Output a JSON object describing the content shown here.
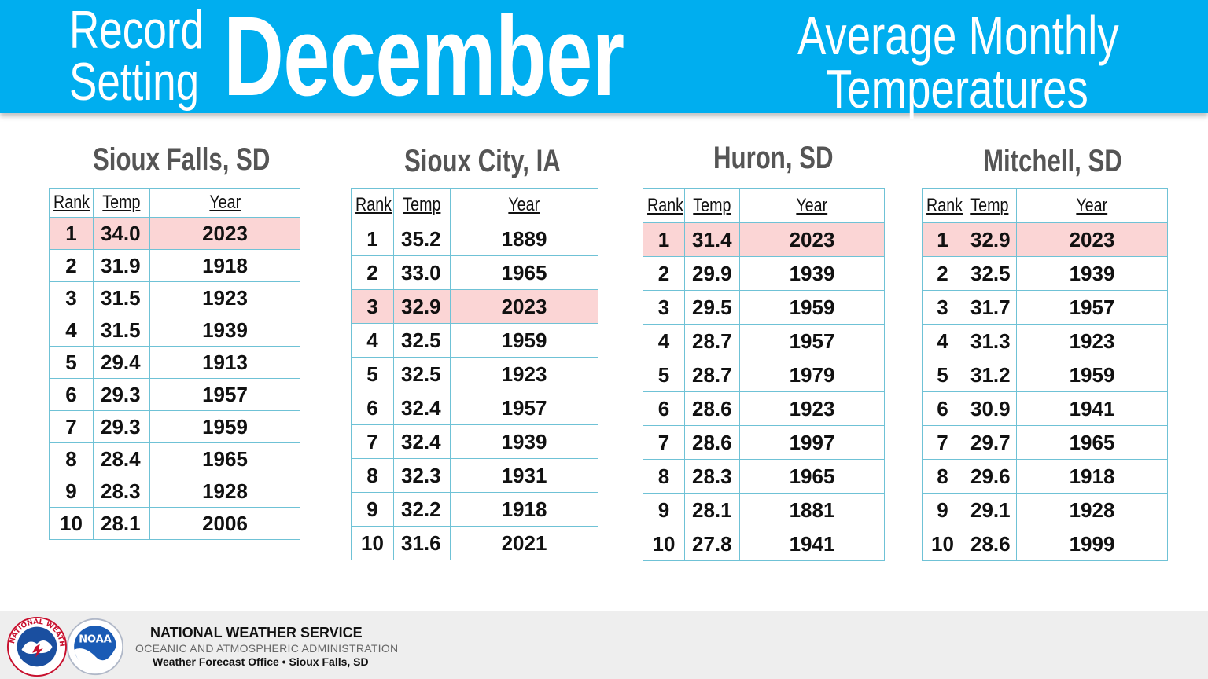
{
  "header": {
    "title_line1": "Record",
    "title_line2": "Setting",
    "title_month": "December",
    "subtitle_line1": "Average Monthly",
    "subtitle_line2": "Temperatures"
  },
  "table_headers": {
    "rank": "Rank",
    "temp": "Temp",
    "year": "Year"
  },
  "cities": [
    {
      "name": "Sioux Falls, SD",
      "highlight_rank": 1,
      "rows": [
        {
          "rank": "1",
          "temp": "34.0",
          "year": "2023"
        },
        {
          "rank": "2",
          "temp": "31.9",
          "year": "1918"
        },
        {
          "rank": "3",
          "temp": "31.5",
          "year": "1923"
        },
        {
          "rank": "4",
          "temp": "31.5",
          "year": "1939"
        },
        {
          "rank": "5",
          "temp": "29.4",
          "year": "1913"
        },
        {
          "rank": "6",
          "temp": "29.3",
          "year": "1957"
        },
        {
          "rank": "7",
          "temp": "29.3",
          "year": "1959"
        },
        {
          "rank": "8",
          "temp": "28.4",
          "year": "1965"
        },
        {
          "rank": "9",
          "temp": "28.3",
          "year": "1928"
        },
        {
          "rank": "10",
          "temp": "28.1",
          "year": "2006"
        }
      ]
    },
    {
      "name": "Sioux City, IA",
      "highlight_rank": 3,
      "rows": [
        {
          "rank": "1",
          "temp": "35.2",
          "year": "1889"
        },
        {
          "rank": "2",
          "temp": "33.0",
          "year": "1965"
        },
        {
          "rank": "3",
          "temp": "32.9",
          "year": "2023"
        },
        {
          "rank": "4",
          "temp": "32.5",
          "year": "1959"
        },
        {
          "rank": "5",
          "temp": "32.5",
          "year": "1923"
        },
        {
          "rank": "6",
          "temp": "32.4",
          "year": "1957"
        },
        {
          "rank": "7",
          "temp": "32.4",
          "year": "1939"
        },
        {
          "rank": "8",
          "temp": "32.3",
          "year": "1931"
        },
        {
          "rank": "9",
          "temp": "32.2",
          "year": "1918"
        },
        {
          "rank": "10",
          "temp": "31.6",
          "year": "2021"
        }
      ]
    },
    {
      "name": "Huron, SD",
      "highlight_rank": 1,
      "rows": [
        {
          "rank": "1",
          "temp": "31.4",
          "year": "2023"
        },
        {
          "rank": "2",
          "temp": "29.9",
          "year": "1939"
        },
        {
          "rank": "3",
          "temp": "29.5",
          "year": "1959"
        },
        {
          "rank": "4",
          "temp": "28.7",
          "year": "1957"
        },
        {
          "rank": "5",
          "temp": "28.7",
          "year": "1979"
        },
        {
          "rank": "6",
          "temp": "28.6",
          "year": "1923"
        },
        {
          "rank": "7",
          "temp": "28.6",
          "year": "1997"
        },
        {
          "rank": "8",
          "temp": "28.3",
          "year": "1965"
        },
        {
          "rank": "9",
          "temp": "28.1",
          "year": "1881"
        },
        {
          "rank": "10",
          "temp": "27.8",
          "year": "1941"
        }
      ]
    },
    {
      "name": "Mitchell, SD",
      "highlight_rank": 1,
      "rows": [
        {
          "rank": "1",
          "temp": "32.9",
          "year": "2023"
        },
        {
          "rank": "2",
          "temp": "32.5",
          "year": "1939"
        },
        {
          "rank": "3",
          "temp": "31.7",
          "year": "1957"
        },
        {
          "rank": "4",
          "temp": "31.3",
          "year": "1923"
        },
        {
          "rank": "5",
          "temp": "31.2",
          "year": "1959"
        },
        {
          "rank": "6",
          "temp": "30.9",
          "year": "1941"
        },
        {
          "rank": "7",
          "temp": "29.7",
          "year": "1965"
        },
        {
          "rank": "8",
          "temp": "29.6",
          "year": "1918"
        },
        {
          "rank": "9",
          "temp": "29.1",
          "year": "1928"
        },
        {
          "rank": "10",
          "temp": "28.6",
          "year": "1999"
        }
      ]
    }
  ],
  "footer": {
    "org_line1": "NATIONAL WEATHER SERVICE",
    "org_line2": "OCEANIC AND ATMOSPHERIC ADMINISTRATION",
    "org_line3": "Weather Forecast Office •  Sioux Falls, SD",
    "logo_nws_text": "NATIONAL WEATHER SERVICE",
    "logo_noaa_text": "NOAA"
  },
  "colors": {
    "banner": "#00aeef",
    "highlight_row": "#fbd5d5",
    "table_border": "#6fc2d6",
    "city_name": "#555555"
  }
}
